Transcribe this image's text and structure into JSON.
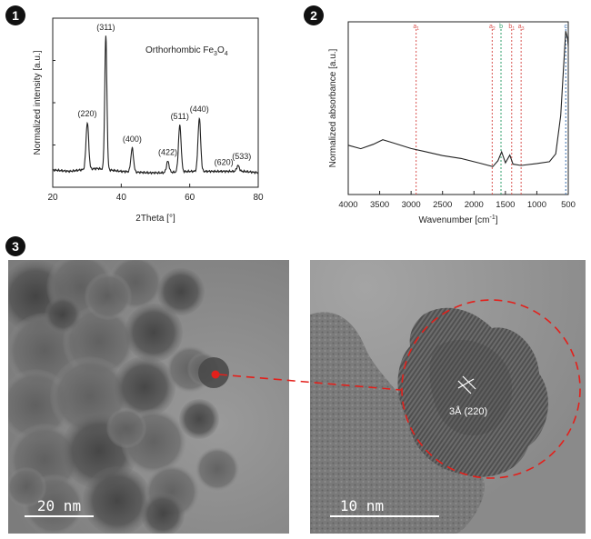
{
  "panels": {
    "p1": "1",
    "p2": "2",
    "p3": "3"
  },
  "chart_data": [
    {
      "type": "line",
      "title": "Orthorhombic Fe3O4",
      "title_main": "Orthorhombic Fe",
      "title_sub1": "3",
      "title_mid": "O",
      "title_sub2": "4",
      "xlabel": "2Theta [°]",
      "ylabel": "Normalized intensity [a.u.]",
      "xlim": [
        20,
        80
      ],
      "xticks": [
        "20",
        "40",
        "60",
        "80"
      ],
      "peaks": [
        {
          "label": "(220)",
          "x": 30.1,
          "y": 0.4
        },
        {
          "label": "(311)",
          "x": 35.5,
          "y": 1.0
        },
        {
          "label": "(400)",
          "x": 43.2,
          "y": 0.22
        },
        {
          "label": "(422)",
          "x": 53.6,
          "y": 0.13
        },
        {
          "label": "(511)",
          "x": 57.1,
          "y": 0.38
        },
        {
          "label": "(440)",
          "x": 62.8,
          "y": 0.43
        },
        {
          "label": "(620)",
          "x": 71.0,
          "y": 0.06
        },
        {
          "label": "(533)",
          "x": 74.1,
          "y": 0.1
        }
      ],
      "baseline": [
        {
          "x": 20,
          "y": 0.07
        },
        {
          "x": 25,
          "y": 0.06
        },
        {
          "x": 28,
          "y": 0.07
        },
        {
          "x": 33,
          "y": 0.08
        },
        {
          "x": 40,
          "y": 0.06
        },
        {
          "x": 48,
          "y": 0.05
        },
        {
          "x": 52,
          "y": 0.05
        },
        {
          "x": 60,
          "y": 0.06
        },
        {
          "x": 66,
          "y": 0.06
        },
        {
          "x": 70,
          "y": 0.06
        },
        {
          "x": 76,
          "y": 0.06
        },
        {
          "x": 80,
          "y": 0.05
        }
      ]
    },
    {
      "type": "line",
      "xlabel": "Wavenumber [cm⁻¹]",
      "xlabel_main": "Wavenumber [cm",
      "xlabel_sup": "-1",
      "xlabel_end": "]",
      "ylabel": "Normalized absorbance [a.u.]",
      "xlim": [
        4000,
        500
      ],
      "xticks": [
        "4000",
        "3500",
        "3000",
        "2500",
        "2000",
        "1500",
        "1000",
        "500"
      ],
      "markers": [
        {
          "label": "a",
          "sub": "1",
          "x": 2920,
          "color": "#d9534f"
        },
        {
          "label": "a",
          "sub": "2",
          "x": 1710,
          "color": "#d9534f"
        },
        {
          "label": "b",
          "sub": "",
          "x": 1570,
          "color": "#2e9e6a"
        },
        {
          "label": "b",
          "sub": "1",
          "x": 1400,
          "color": "#d9534f"
        },
        {
          "label": "a",
          "sub": "3",
          "x": 1250,
          "color": "#d9534f"
        },
        {
          "label": "c",
          "sub": "",
          "x": 540,
          "color": "#3a6fb0"
        }
      ],
      "spectrum": [
        {
          "x": 4000,
          "y": 0.26
        },
        {
          "x": 3800,
          "y": 0.24
        },
        {
          "x": 3600,
          "y": 0.27
        },
        {
          "x": 3450,
          "y": 0.3
        },
        {
          "x": 3300,
          "y": 0.28
        },
        {
          "x": 3000,
          "y": 0.24
        },
        {
          "x": 2800,
          "y": 0.22
        },
        {
          "x": 2500,
          "y": 0.19
        },
        {
          "x": 2200,
          "y": 0.17
        },
        {
          "x": 1900,
          "y": 0.14
        },
        {
          "x": 1700,
          "y": 0.12
        },
        {
          "x": 1620,
          "y": 0.16
        },
        {
          "x": 1560,
          "y": 0.22
        },
        {
          "x": 1500,
          "y": 0.15
        },
        {
          "x": 1430,
          "y": 0.2
        },
        {
          "x": 1380,
          "y": 0.14
        },
        {
          "x": 1250,
          "y": 0.13
        },
        {
          "x": 1000,
          "y": 0.14
        },
        {
          "x": 800,
          "y": 0.15
        },
        {
          "x": 700,
          "y": 0.2
        },
        {
          "x": 620,
          "y": 0.45
        },
        {
          "x": 570,
          "y": 0.8
        },
        {
          "x": 540,
          "y": 1.0
        },
        {
          "x": 510,
          "y": 0.95
        },
        {
          "x": 500,
          "y": 0.9
        }
      ]
    }
  ],
  "tem": {
    "left_scale": "20 nm",
    "right_scale": "10 nm",
    "lattice_label": "3Å (220)"
  },
  "colors": {
    "marker_red": "#e3201b",
    "tem_bg": "#9e9e9e"
  }
}
